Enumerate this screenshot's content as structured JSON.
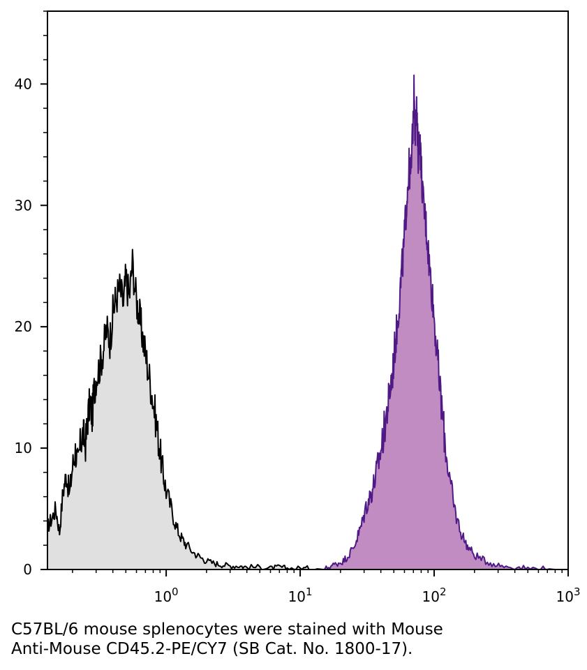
{
  "chart_data": {
    "type": "area",
    "title": "",
    "xlabel": "",
    "ylabel": "",
    "x_scale": "log",
    "xlim": [
      0.13,
      1000
    ],
    "ylim": [
      0,
      46
    ],
    "x_ticks": [
      {
        "value": 1,
        "base": "10",
        "exp": "0"
      },
      {
        "value": 10,
        "base": "10",
        "exp": "1"
      },
      {
        "value": 100,
        "base": "10",
        "exp": "2"
      },
      {
        "value": 1000,
        "base": "10",
        "exp": "3"
      }
    ],
    "y_ticks": [
      0,
      10,
      20,
      30,
      40
    ],
    "grid": false,
    "legend": "none",
    "series": [
      {
        "color_line": "#000000",
        "color_fill": "#e0e0e0",
        "points": [
          [
            0.13,
            3.5
          ],
          [
            0.14,
            4.2
          ],
          [
            0.15,
            5.0
          ],
          [
            0.16,
            3.1
          ],
          [
            0.17,
            6.5
          ],
          [
            0.18,
            7.8
          ],
          [
            0.19,
            6.2
          ],
          [
            0.2,
            8.5
          ],
          [
            0.21,
            9.8
          ],
          [
            0.22,
            8.7
          ],
          [
            0.23,
            10.5
          ],
          [
            0.24,
            11.2
          ],
          [
            0.25,
            10.3
          ],
          [
            0.26,
            12.5
          ],
          [
            0.27,
            13.8
          ],
          [
            0.28,
            12.6
          ],
          [
            0.29,
            14.8
          ],
          [
            0.3,
            15.9
          ],
          [
            0.32,
            16.8
          ],
          [
            0.34,
            18.2
          ],
          [
            0.36,
            19.8
          ],
          [
            0.38,
            18.9
          ],
          [
            0.4,
            21.1
          ],
          [
            0.42,
            22.3
          ],
          [
            0.45,
            23.2
          ],
          [
            0.48,
            21.9
          ],
          [
            0.5,
            24.1
          ],
          [
            0.53,
            22.4
          ],
          [
            0.56,
            25.3
          ],
          [
            0.6,
            22.1
          ],
          [
            0.63,
            21.0
          ],
          [
            0.66,
            19.5
          ],
          [
            0.7,
            17.8
          ],
          [
            0.75,
            15.8
          ],
          [
            0.8,
            13.9
          ],
          [
            0.85,
            11.8
          ],
          [
            0.9,
            9.7
          ],
          [
            0.95,
            7.9
          ],
          [
            1.0,
            6.5
          ],
          [
            1.1,
            4.9
          ],
          [
            1.2,
            3.4
          ],
          [
            1.3,
            2.6
          ],
          [
            1.4,
            2.1
          ],
          [
            1.6,
            1.4
          ],
          [
            1.8,
            1.0
          ],
          [
            2.0,
            0.7
          ],
          [
            2.3,
            0.5
          ],
          [
            2.6,
            0.4
          ],
          [
            3.0,
            0.3
          ],
          [
            3.5,
            0.3
          ],
          [
            4.0,
            0.2
          ],
          [
            5.0,
            0.2
          ],
          [
            6.0,
            0.1
          ],
          [
            7.0,
            0.2
          ],
          [
            8.0,
            0.1
          ],
          [
            10.0,
            0.1
          ],
          [
            12.0,
            0.1
          ],
          [
            15.0,
            0.0
          ]
        ]
      },
      {
        "color_line": "#4f1a86",
        "color_fill": "#c08cc2",
        "points": [
          [
            1.0,
            0.0
          ],
          [
            15.0,
            0.0
          ],
          [
            17.0,
            0.3
          ],
          [
            19.0,
            0.5
          ],
          [
            21.0,
            0.7
          ],
          [
            23.0,
            1.2
          ],
          [
            25.0,
            1.8
          ],
          [
            27.0,
            2.8
          ],
          [
            29.0,
            3.8
          ],
          [
            31.0,
            5.2
          ],
          [
            33.0,
            5.9
          ],
          [
            35.0,
            6.8
          ],
          [
            37.0,
            7.9
          ],
          [
            39.0,
            9.2
          ],
          [
            41.0,
            10.4
          ],
          [
            43.0,
            12.0
          ],
          [
            45.0,
            13.4
          ],
          [
            47.0,
            14.9
          ],
          [
            49.0,
            16.3
          ],
          [
            51.0,
            18.4
          ],
          [
            53.0,
            20.1
          ],
          [
            55.0,
            22.2
          ],
          [
            57.0,
            24.3
          ],
          [
            59.0,
            26.1
          ],
          [
            61.0,
            28.7
          ],
          [
            63.0,
            31.2
          ],
          [
            65.0,
            33.1
          ],
          [
            67.0,
            32.4
          ],
          [
            69.0,
            35.9
          ],
          [
            71.0,
            39.8
          ],
          [
            72.0,
            36.2
          ],
          [
            74.0,
            37.5
          ],
          [
            76.0,
            34.1
          ],
          [
            78.0,
            35.8
          ],
          [
            80.0,
            33.2
          ],
          [
            83.0,
            30.1
          ],
          [
            86.0,
            28.9
          ],
          [
            89.0,
            27.2
          ],
          [
            92.0,
            25.1
          ],
          [
            96.0,
            23.1
          ],
          [
            100.0,
            20.8
          ],
          [
            105.0,
            17.9
          ],
          [
            110.0,
            15.1
          ],
          [
            116.0,
            12.4
          ],
          [
            122.0,
            9.9
          ],
          [
            130.0,
            7.6
          ],
          [
            140.0,
            5.3
          ],
          [
            150.0,
            3.9
          ],
          [
            165.0,
            2.6
          ],
          [
            180.0,
            1.8
          ],
          [
            200.0,
            1.2
          ],
          [
            230.0,
            0.8
          ],
          [
            270.0,
            0.5
          ],
          [
            320.0,
            0.3
          ],
          [
            400.0,
            0.2
          ],
          [
            500.0,
            0.1
          ],
          [
            650.0,
            0.1
          ],
          [
            800.0,
            0.0
          ]
        ]
      }
    ]
  },
  "caption": {
    "line1": "C57BL/6 mouse splenocytes were stained with Mouse",
    "line2": "Anti-Mouse CD45.2-PE/CY7 (SB Cat. No. 1800-17)."
  }
}
